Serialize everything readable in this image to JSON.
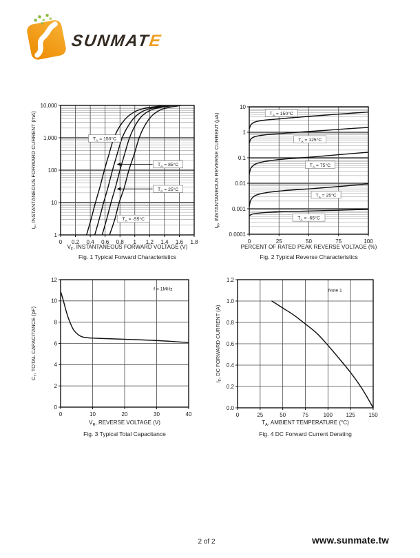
{
  "logo": {
    "wordmark_main": "SUNMAT",
    "wordmark_accent": "E",
    "colors": {
      "orange_light": "#f8b237",
      "orange_dark": "#ec8a00",
      "swoosh": "#ffffff",
      "dots_green": "#8cb83f",
      "dots_green_light": "#b3d07a",
      "text_dark": "#332b22",
      "text_accent": "#f09d20"
    }
  },
  "page": {
    "footer": {
      "page_number": "2 of 2",
      "website": "www.sunmate.tw"
    }
  },
  "colors": {
    "curve": "#121212",
    "border": "#000000",
    "grid_major": "#4a4a4a",
    "grid_minor": "#999999",
    "log_major": "#1f1f1f",
    "text": "#1a1a1a",
    "annotation_box_border": "#777777"
  },
  "chart_data": [
    {
      "id": "fig1",
      "type": "line",
      "caption": "Fig. 1  Typical Forward Characteristics",
      "x": {
        "label": "V~F~, INSTANTANEOUS FORWARD VOLTAGE (V)",
        "scale": "linear",
        "min": 0,
        "max": 1.8,
        "ticks": [
          0,
          0.2,
          0.4,
          0.6,
          0.8,
          1,
          1.2,
          1.4,
          1.6,
          1.8
        ],
        "tick_labels": [
          "0",
          "0.2",
          "0.4",
          "0.6",
          "0.8",
          "1",
          "1.2",
          "1.4",
          "1.6",
          "1.8"
        ]
      },
      "y": {
        "label": "I~F~, INSTANTANEOUS FORWARD CURRENT (mA)",
        "scale": "log",
        "min": 1,
        "max": 10000,
        "ticks": [
          1,
          10,
          100,
          1000,
          10000
        ],
        "tick_labels": [
          "1",
          "10",
          "100",
          "1,000",
          "10,000"
        ]
      },
      "series": [
        {
          "name": "TA = 150C",
          "points": [
            [
              0.35,
              1
            ],
            [
              0.41,
              3
            ],
            [
              0.47,
              10
            ],
            [
              0.53,
              30
            ],
            [
              0.59,
              100
            ],
            [
              0.65,
              300
            ],
            [
              0.72,
              1000
            ],
            [
              0.81,
              2500
            ],
            [
              0.93,
              5000
            ],
            [
              1.1,
              7800
            ],
            [
              1.42,
              10000
            ]
          ]
        },
        {
          "name": "TA = 85C",
          "points": [
            [
              0.46,
              1
            ],
            [
              0.52,
              3
            ],
            [
              0.58,
              10
            ],
            [
              0.64,
              30
            ],
            [
              0.7,
              100
            ],
            [
              0.76,
              300
            ],
            [
              0.83,
              1000
            ],
            [
              0.92,
              2500
            ],
            [
              1.03,
              5000
            ],
            [
              1.19,
              7800
            ],
            [
              1.48,
              10000
            ]
          ]
        },
        {
          "name": "TA = 25C",
          "points": [
            [
              0.56,
              1
            ],
            [
              0.62,
              3
            ],
            [
              0.68,
              10
            ],
            [
              0.74,
              30
            ],
            [
              0.8,
              100
            ],
            [
              0.86,
              300
            ],
            [
              0.93,
              1000
            ],
            [
              1.01,
              2500
            ],
            [
              1.11,
              5000
            ],
            [
              1.26,
              7800
            ],
            [
              1.53,
              10000
            ]
          ]
        },
        {
          "name": "TA = -55C",
          "points": [
            [
              0.66,
              1
            ],
            [
              0.73,
              3
            ],
            [
              0.79,
              10
            ],
            [
              0.86,
              30
            ],
            [
              0.92,
              100
            ],
            [
              0.99,
              300
            ],
            [
              1.06,
              1000
            ],
            [
              1.14,
              2500
            ],
            [
              1.24,
              5000
            ],
            [
              1.38,
              7800
            ],
            [
              1.62,
              10000
            ]
          ]
        }
      ],
      "annotations": [
        {
          "text": "T~A~ = 150°C",
          "fx": 0.33,
          "fy": 0.255,
          "box": true
        },
        {
          "text": "T~A~ = 85°C",
          "fx": 0.805,
          "fy": 0.455,
          "box": true,
          "arrow": {
            "fx": 0.42,
            "fy": 0.455
          }
        },
        {
          "text": "T~A~ = 25°C",
          "fx": 0.805,
          "fy": 0.645,
          "box": true,
          "arrow": {
            "fx": 0.42,
            "fy": 0.645
          }
        },
        {
          "text": "T~A~ = -55°C",
          "fx": 0.545,
          "fy": 0.875,
          "box": true
        }
      ]
    },
    {
      "id": "fig2",
      "type": "line",
      "caption": "Fig. 2  Typical Reverse Characteristics",
      "x": {
        "label": "PERCENT OF RATED PEAK REVERSE VOLTAGE (%)",
        "scale": "linear",
        "min": 0,
        "max": 100,
        "ticks": [
          0,
          25,
          50,
          75,
          100
        ],
        "tick_labels": [
          "0",
          "25",
          "50",
          "75",
          "100"
        ]
      },
      "y": {
        "label": "I~R~, INSTANTANEOUS REVERSE CURRENT (µA)",
        "scale": "log",
        "min": 0.0001,
        "max": 10,
        "ticks": [
          0.0001,
          0.001,
          0.01,
          0.1,
          1,
          10
        ],
        "tick_labels": [
          "0.0001",
          "0.001",
          "0.01",
          "0.1",
          "1",
          "10"
        ]
      },
      "series": [
        {
          "name": "TA = 150C",
          "points": [
            [
              0,
              1.35
            ],
            [
              0.7,
              1.7
            ],
            [
              1.5,
              2.0
            ],
            [
              3,
              2.3
            ],
            [
              5,
              2.55
            ],
            [
              8,
              2.75
            ],
            [
              12,
              2.95
            ],
            [
              18,
              3.15
            ],
            [
              25,
              3.35
            ],
            [
              35,
              3.7
            ],
            [
              50,
              4.2
            ],
            [
              65,
              4.75
            ],
            [
              80,
              5.35
            ],
            [
              100,
              6.2
            ]
          ]
        },
        {
          "name": "TA = 125C",
          "points": [
            [
              0,
              0.37
            ],
            [
              0.7,
              0.47
            ],
            [
              1.5,
              0.55
            ],
            [
              3,
              0.62
            ],
            [
              5,
              0.68
            ],
            [
              8,
              0.73
            ],
            [
              12,
              0.78
            ],
            [
              18,
              0.83
            ],
            [
              25,
              0.88
            ],
            [
              35,
              0.96
            ],
            [
              50,
              1.07
            ],
            [
              65,
              1.2
            ],
            [
              80,
              1.35
            ],
            [
              100,
              1.55
            ]
          ]
        },
        {
          "name": "TA = 75C",
          "points": [
            [
              0,
              0.022
            ],
            [
              0.7,
              0.032
            ],
            [
              1.5,
              0.04
            ],
            [
              3,
              0.048
            ],
            [
              5,
              0.056
            ],
            [
              8,
              0.063
            ],
            [
              12,
              0.07
            ],
            [
              18,
              0.077
            ],
            [
              25,
              0.085
            ],
            [
              35,
              0.094
            ],
            [
              50,
              0.105
            ],
            [
              65,
              0.12
            ],
            [
              80,
              0.138
            ],
            [
              100,
              0.165
            ]
          ]
        },
        {
          "name": "TA = 25C",
          "points": [
            [
              0,
              0.0012
            ],
            [
              0.7,
              0.0018
            ],
            [
              1.5,
              0.0023
            ],
            [
              3,
              0.0028
            ],
            [
              5,
              0.0033
            ],
            [
              8,
              0.0037
            ],
            [
              12,
              0.0041
            ],
            [
              18,
              0.0045
            ],
            [
              25,
              0.0049
            ],
            [
              35,
              0.0054
            ],
            [
              50,
              0.006
            ],
            [
              65,
              0.0068
            ],
            [
              80,
              0.0078
            ],
            [
              100,
              0.0095
            ]
          ]
        },
        {
          "name": "TA = -65C",
          "points": [
            [
              0,
              0.00052
            ],
            [
              2,
              0.0006
            ],
            [
              6,
              0.00066
            ],
            [
              12,
              0.0007
            ],
            [
              20,
              0.00074
            ],
            [
              30,
              0.00077
            ],
            [
              45,
              0.0008
            ],
            [
              60,
              0.00084
            ],
            [
              75,
              0.00088
            ],
            [
              100,
              0.00095
            ]
          ]
        }
      ],
      "annotations": [
        {
          "text": "T~A~ = 150°C",
          "fx": 0.27,
          "fy": 0.05,
          "box": true
        },
        {
          "text": "T~A~ = 125°C",
          "fx": 0.51,
          "fy": 0.255,
          "box": true
        },
        {
          "text": "T~A~ = 75°C",
          "fx": 0.595,
          "fy": 0.455,
          "box": true
        },
        {
          "text": "T~A~ = 25°C",
          "fx": 0.645,
          "fy": 0.69,
          "box": true
        },
        {
          "text": "T~A~ = -65°C",
          "fx": 0.5,
          "fy": 0.87,
          "box": true
        }
      ]
    },
    {
      "id": "fig3",
      "type": "line",
      "caption": "Fig. 3  Typical Total Capacitance",
      "x": {
        "label": "V~R~, REVERSE VOLTAGE (V)",
        "scale": "linear",
        "min": 0,
        "max": 40,
        "ticks": [
          0,
          10,
          20,
          30,
          40
        ],
        "tick_labels": [
          "0",
          "10",
          "20",
          "30",
          "40"
        ]
      },
      "y": {
        "label": "C~T~, TOTAL CAPACITANCE (pF)",
        "scale": "linear",
        "min": 0,
        "max": 12,
        "ticks": [
          0,
          2,
          4,
          6,
          8,
          10,
          12
        ],
        "tick_labels": [
          "0",
          "2",
          "4",
          "6",
          "8",
          "10",
          "12"
        ]
      },
      "series": [
        {
          "name": "CT",
          "points": [
            [
              0,
              10.9
            ],
            [
              0.8,
              10.1
            ],
            [
              1.6,
              9.2
            ],
            [
              2.4,
              8.4
            ],
            [
              3.2,
              7.8
            ],
            [
              4,
              7.3
            ],
            [
              5,
              6.95
            ],
            [
              6,
              6.72
            ],
            [
              7,
              6.6
            ],
            [
              8,
              6.55
            ],
            [
              10,
              6.5
            ],
            [
              13,
              6.46
            ],
            [
              17,
              6.42
            ],
            [
              22,
              6.37
            ],
            [
              28,
              6.3
            ],
            [
              34,
              6.2
            ],
            [
              40,
              6.08
            ]
          ]
        }
      ],
      "annotations": [
        {
          "text": "f = 1MHz",
          "fx": 0.8,
          "fy": 0.07,
          "box": false
        }
      ]
    },
    {
      "id": "fig4",
      "type": "line",
      "caption": "Fig. 4  DC Forward Current Derating",
      "x": {
        "label": "T~A~, AMBIENT TEMPERATURE (°C)",
        "scale": "linear",
        "min": 0,
        "max": 150,
        "ticks": [
          0,
          25,
          50,
          75,
          100,
          125,
          150
        ],
        "tick_labels": [
          "0",
          "25",
          "50",
          "75",
          "100",
          "125",
          "150"
        ]
      },
      "y": {
        "label": "I~F~, DC FORWARD CURRENT (A)",
        "scale": "linear",
        "min": 0,
        "max": 1.2,
        "ticks": [
          0,
          0.2,
          0.4,
          0.6,
          0.8,
          1.0,
          1.2
        ],
        "tick_labels": [
          "0.0",
          "0.2",
          "0.4",
          "0.6",
          "0.8",
          "1.0",
          "1.2"
        ]
      },
      "series": [
        {
          "name": "IF derating",
          "points": [
            [
              38,
              1.0
            ],
            [
              50,
              0.935
            ],
            [
              62,
              0.87
            ],
            [
              75,
              0.785
            ],
            [
              88,
              0.695
            ],
            [
              100,
              0.585
            ],
            [
              112,
              0.465
            ],
            [
              125,
              0.33
            ],
            [
              138,
              0.175
            ],
            [
              150,
              0.0
            ]
          ]
        }
      ],
      "annotations": [
        {
          "text": "Note 1",
          "fx": 0.72,
          "fy": 0.08,
          "box": false
        }
      ]
    }
  ]
}
